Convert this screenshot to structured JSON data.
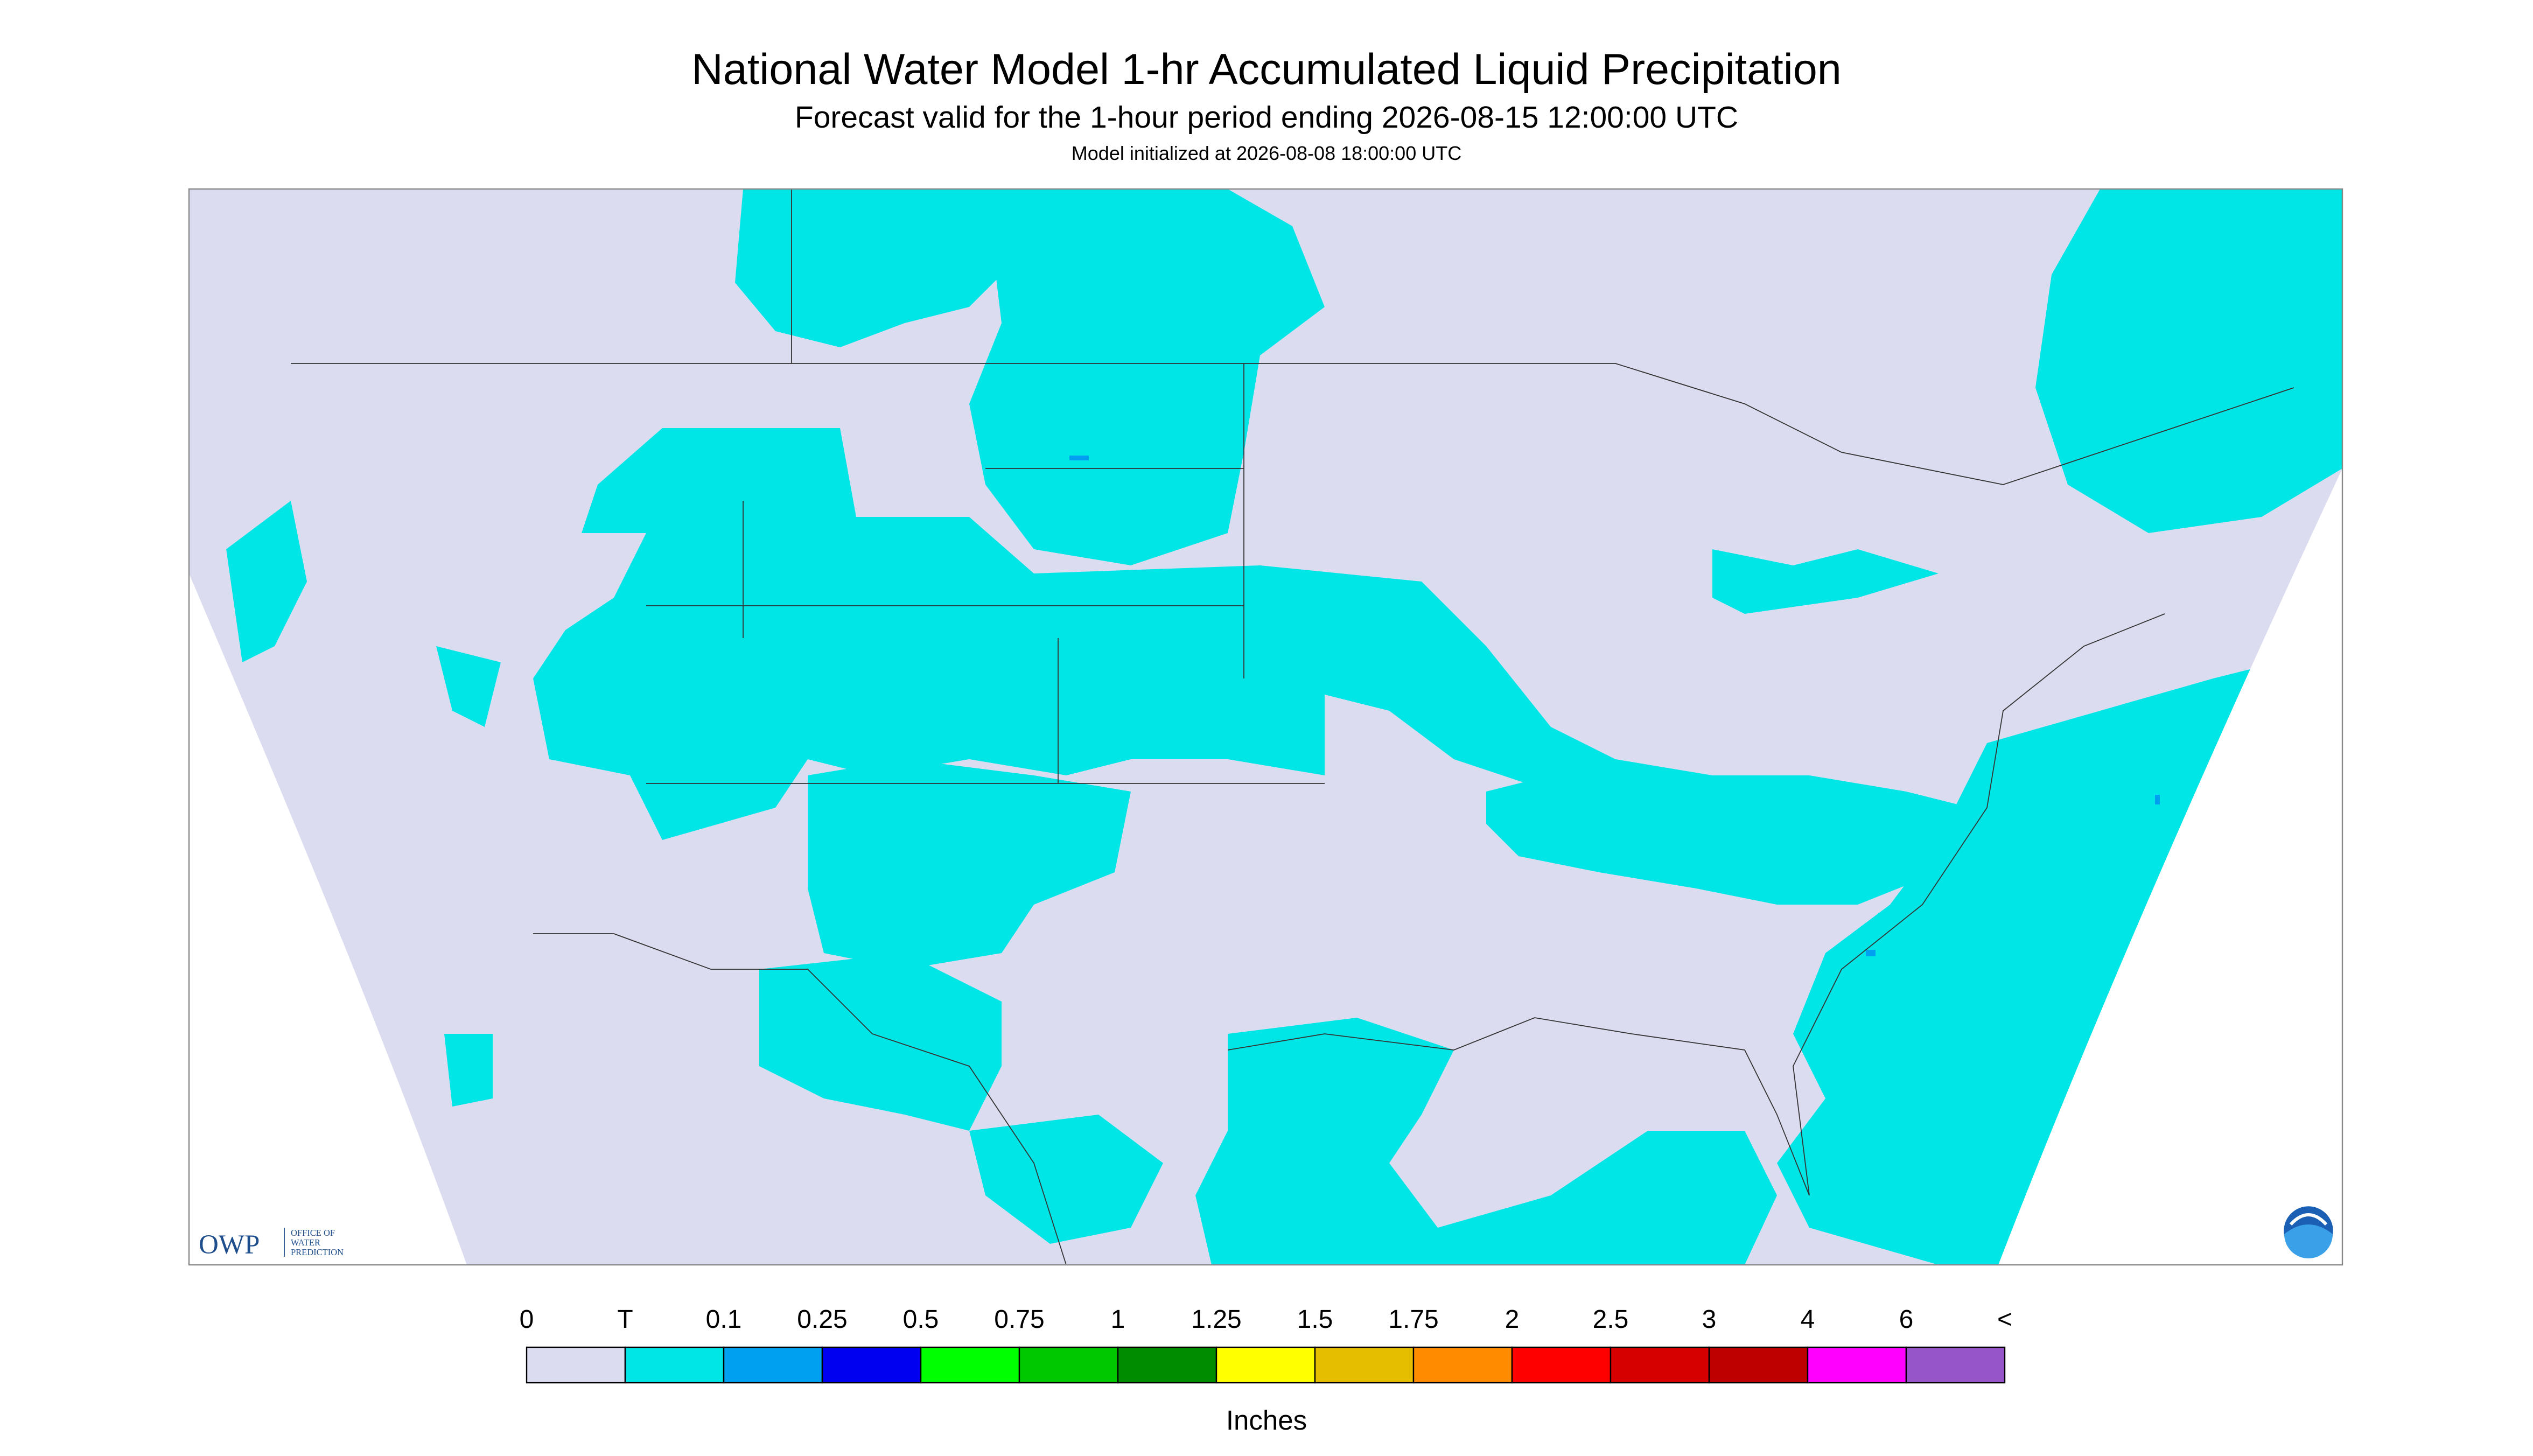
{
  "header": {
    "title": "National Water Model 1-hr Accumulated Liquid Precipitation",
    "subtitle": "Forecast valid for the 1-hour period ending 2026-08-15 12:00:00 UTC",
    "init": "Model initialized at 2026-08-08 18:00:00 UTC"
  },
  "legend": {
    "labels": [
      "0",
      "T",
      "0.1",
      "0.25",
      "0.5",
      "0.75",
      "1",
      "1.25",
      "1.5",
      "1.75",
      "2",
      "2.5",
      "3",
      "4",
      "6",
      "<"
    ],
    "colors": [
      "#dcdcf0",
      "#00e6e6",
      "#00a0f0",
      "#0000f0",
      "#00ff00",
      "#00c800",
      "#008c00",
      "#ffff00",
      "#e6be00",
      "#ff8c00",
      "#ff0000",
      "#d70000",
      "#be0000",
      "#ff00ff",
      "#9655c8"
    ],
    "unit": "Inches"
  },
  "logo": {
    "abbr": "OWP",
    "line1": "OFFICE OF",
    "line2": "WATER",
    "line3": "PREDICTION"
  }
}
